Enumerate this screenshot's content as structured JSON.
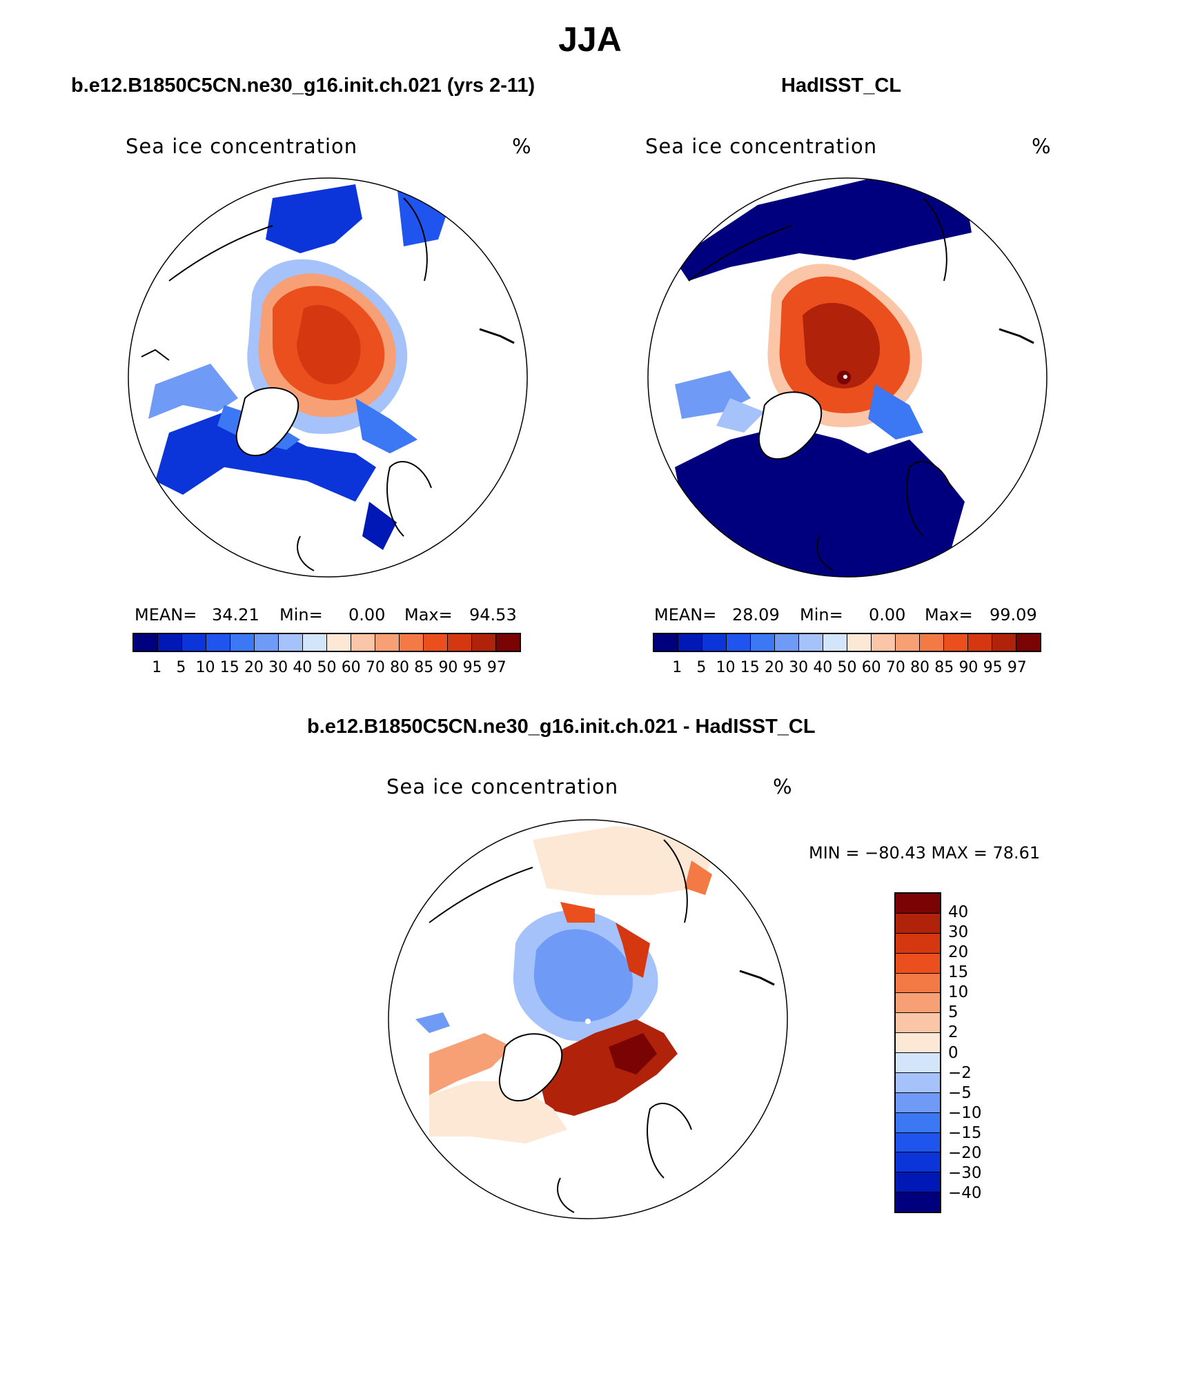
{
  "page": {
    "title": "JJA",
    "panels": [
      {
        "title": "b.e12.B1850C5CN.ne30_g16.init.ch.021 (yrs 2-11)",
        "field": "Sea ice concentration",
        "units": "%",
        "mean_label": "MEAN=",
        "mean": "34.21",
        "min_label": "Min=",
        "min": "0.00",
        "max_label": "Max=",
        "max": "94.53"
      },
      {
        "title": "HadISST_CL",
        "field": "Sea ice concentration",
        "units": "%",
        "mean_label": "MEAN=",
        "mean": "28.09",
        "min_label": "Min=",
        "min": "0.00",
        "max_label": "Max=",
        "max": "99.09"
      }
    ],
    "diff_panel": {
      "title": "b.e12.B1850C5CN.ne30_g16.init.ch.021 - HadISST_CL",
      "field": "Sea ice concentration",
      "units": "%",
      "minmax_text": "MIN = −80.43 MAX =   78.61"
    },
    "colorbar": {
      "levels": [
        "1",
        "5",
        "10",
        "15",
        "20",
        "30",
        "40",
        "50",
        "60",
        "70",
        "80",
        "85",
        "90",
        "95",
        "97"
      ],
      "colors": [
        "#00007f",
        "#0018b5",
        "#0b35d8",
        "#1f55ee",
        "#3c78f4",
        "#6f9af6",
        "#a5c2fa",
        "#d3e5fb",
        "#fde8d6",
        "#fbc6a7",
        "#f8a075",
        "#f37a45",
        "#ec4f1e",
        "#d53711",
        "#b0230a",
        "#7a0403"
      ]
    },
    "diff_colorbar": {
      "levels": [
        "40",
        "30",
        "20",
        "15",
        "10",
        "5",
        "2",
        "0",
        "−2",
        "−5",
        "−10",
        "−15",
        "−20",
        "−30",
        "−40"
      ],
      "colors": [
        "#7a0403",
        "#b0230a",
        "#d53711",
        "#ec4f1e",
        "#f37a45",
        "#f8a075",
        "#fbc6a7",
        "#fde8d6",
        "#d3e5fb",
        "#a5c2fa",
        "#6f9af6",
        "#3c78f4",
        "#1f55ee",
        "#0b35d8",
        "#0018b5",
        "#00007f"
      ]
    }
  }
}
